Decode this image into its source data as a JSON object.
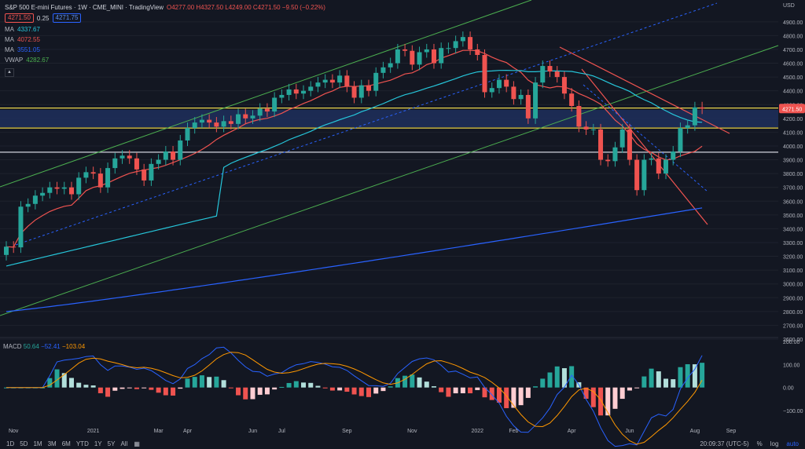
{
  "header": {
    "title": "S&P 500 E-mini Futures · 1W · CME_MINI · TradingView",
    "ohlc": "O4277.00 H4327.50 L4249.00 C4271.50 −9.50 (−0.22%)",
    "bid": "4271.50",
    "spread": "0.25",
    "ask": "4271.75"
  },
  "indicators": [
    {
      "name": "MA",
      "value": "4337.67",
      "color": "#26c6da"
    },
    {
      "name": "MA",
      "value": "4072.55",
      "color": "#ef5350"
    },
    {
      "name": "MA",
      "value": "3551.05",
      "color": "#2962ff"
    },
    {
      "name": "VWAP",
      "value": "4282.67",
      "color": "#4caf50"
    }
  ],
  "macd": {
    "label": "MACD",
    "v1": "50.64",
    "v2": "−52.41",
    "v3": "−103.04"
  },
  "colors": {
    "up": "#26a69a",
    "down": "#ef5350",
    "bg": "#131722",
    "grid": "#1e222d"
  },
  "bottom": {
    "timeframes": [
      "1D",
      "5D",
      "1M",
      "3M",
      "6M",
      "YTD",
      "1Y",
      "5Y",
      "All"
    ],
    "calendar_icon": "calendar-icon",
    "clock": "20:09:37 (UTC-5)",
    "percent": "%",
    "log": "log",
    "auto": "auto"
  },
  "chart_data": {
    "type": "candlestick",
    "unit": "USD",
    "y_ticks": [
      2600,
      2700,
      2800,
      2900,
      3000,
      3100,
      3200,
      3300,
      3400,
      3500,
      3600,
      3700,
      3800,
      3900,
      4000,
      4100,
      4200,
      4300,
      4400,
      4500,
      4600,
      4700,
      4800,
      4900
    ],
    "ylim": [
      2600,
      4990
    ],
    "x_labels": [
      {
        "label": "Nov",
        "week": 1
      },
      {
        "label": "2021",
        "week": 12
      },
      {
        "label": "Mar",
        "week": 21
      },
      {
        "label": "Apr",
        "week": 25
      },
      {
        "label": "Jun",
        "week": 34
      },
      {
        "label": "Jul",
        "week": 38
      },
      {
        "label": "Sep",
        "week": 47
      },
      {
        "label": "Nov",
        "week": 56
      },
      {
        "label": "2022",
        "week": 65
      },
      {
        "label": "Feb",
        "week": 70
      },
      {
        "label": "Apr",
        "week": 78
      },
      {
        "label": "Jun",
        "week": 86
      },
      {
        "label": "Aug",
        "week": 95
      },
      {
        "label": "Sep",
        "week": 100
      }
    ],
    "last_price": {
      "value": 4271.5,
      "label": "4271.50"
    },
    "close": [
      3270,
      3265,
      3560,
      3580,
      3640,
      3660,
      3700,
      3690,
      3700,
      3650,
      3770,
      3810,
      3800,
      3700,
      3840,
      3910,
      3930,
      3910,
      3830,
      3750,
      3870,
      3900,
      3960,
      3900,
      4040,
      4130,
      4170,
      4190,
      4170,
      4140,
      4180,
      4160,
      4230,
      4200,
      4220,
      4270,
      4250,
      4350,
      4370,
      4410,
      4380,
      4400,
      4430,
      4460,
      4480,
      4460,
      4510,
      4430,
      4350,
      4440,
      4400,
      4530,
      4570,
      4600,
      4700,
      4690,
      4590,
      4680,
      4700,
      4600,
      4710,
      4710,
      4760,
      4790,
      4700,
      4660,
      4390,
      4420,
      4480,
      4430,
      4340,
      4370,
      4200,
      4460,
      4580,
      4540,
      4500,
      4380,
      4290,
      4140,
      4120,
      4120,
      3900,
      3890,
      3990,
      4120,
      3900,
      3680,
      3900,
      3910,
      3800,
      3900,
      3960,
      4130,
      4150,
      4280,
      4271.5
    ],
    "ma_fast_endpoints": {
      "start": 3130,
      "end": 4330
    },
    "ma_mid_endpoints": {
      "start": 3280,
      "end": 4072.55
    },
    "ma_slow_endpoints": {
      "start": 2800,
      "end": 3551.05
    },
    "horizontal_levels": [
      4275,
      4130,
      3955
    ],
    "macd_ticks": [
      200,
      100,
      0,
      -100
    ],
    "macd_ylim": [
      -185,
      210
    ]
  }
}
